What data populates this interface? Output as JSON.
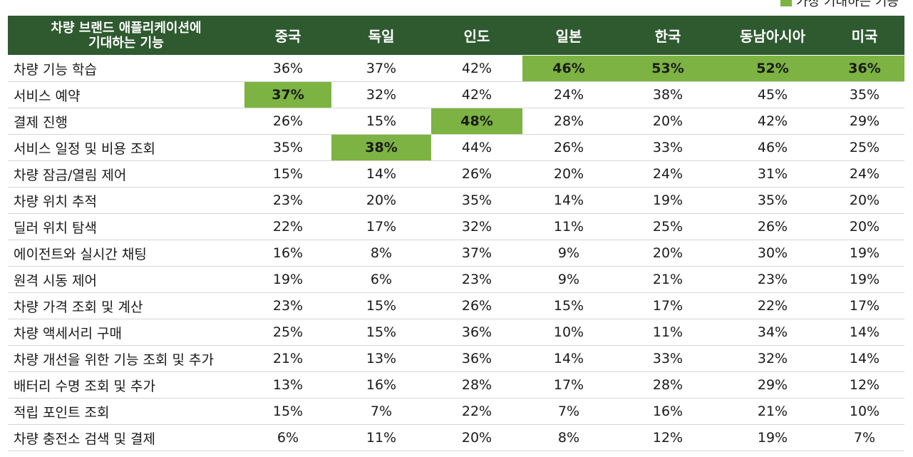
{
  "legend": {
    "label": "가장 기대하는 기능",
    "color": "#7cb342"
  },
  "colors": {
    "header": "#2f5a30",
    "highlight": "#7cb342"
  },
  "chart_data": {
    "type": "table",
    "title": "",
    "header_label": [
      "차량 브랜드 애플리케이션에",
      "기대하는 기능"
    ],
    "columns": [
      "중국",
      "독일",
      "인도",
      "일본",
      "한국",
      "동남아시아",
      "미국"
    ],
    "rows": [
      {
        "label": "차량 기능 학습",
        "values": [
          "36%",
          "37%",
          "42%",
          "46%",
          "53%",
          "52%",
          "36%"
        ],
        "highlight": [
          3,
          4,
          5,
          6
        ]
      },
      {
        "label": "서비스 예약",
        "values": [
          "37%",
          "32%",
          "42%",
          "24%",
          "38%",
          "45%",
          "35%"
        ],
        "highlight": [
          0
        ]
      },
      {
        "label": "결제 진행",
        "values": [
          "26%",
          "15%",
          "48%",
          "28%",
          "20%",
          "42%",
          "29%"
        ],
        "highlight": [
          2
        ]
      },
      {
        "label": "서비스 일정 및 비용 조회",
        "values": [
          "35%",
          "38%",
          "44%",
          "26%",
          "33%",
          "46%",
          "25%"
        ],
        "highlight": [
          1
        ]
      },
      {
        "label": "차량 잠금/열림 제어",
        "values": [
          "15%",
          "14%",
          "26%",
          "20%",
          "24%",
          "31%",
          "24%"
        ],
        "highlight": []
      },
      {
        "label": "차량 위치 추적",
        "values": [
          "23%",
          "20%",
          "35%",
          "14%",
          "19%",
          "35%",
          "20%"
        ],
        "highlight": []
      },
      {
        "label": "딜러 위치 탐색",
        "values": [
          "22%",
          "17%",
          "32%",
          "11%",
          "25%",
          "26%",
          "20%"
        ],
        "highlight": []
      },
      {
        "label": "에이전트와 실시간 채팅",
        "values": [
          "16%",
          "8%",
          "37%",
          "9%",
          "20%",
          "30%",
          "19%"
        ],
        "highlight": []
      },
      {
        "label": "원격 시동 제어",
        "values": [
          "19%",
          "6%",
          "23%",
          "9%",
          "21%",
          "23%",
          "19%"
        ],
        "highlight": []
      },
      {
        "label": "차량 가격 조회 및 계산",
        "values": [
          "23%",
          "15%",
          "26%",
          "15%",
          "17%",
          "22%",
          "17%"
        ],
        "highlight": []
      },
      {
        "label": "차량 액세서리 구매",
        "values": [
          "25%",
          "15%",
          "36%",
          "10%",
          "11%",
          "34%",
          "14%"
        ],
        "highlight": []
      },
      {
        "label": "차량 개선을 위한 기능 조회 및 추가",
        "values": [
          "21%",
          "13%",
          "36%",
          "14%",
          "33%",
          "32%",
          "14%"
        ],
        "highlight": []
      },
      {
        "label": "배터리 수명 조회 및 추가",
        "values": [
          "13%",
          "16%",
          "28%",
          "17%",
          "28%",
          "29%",
          "12%"
        ],
        "highlight": []
      },
      {
        "label": "적립 포인트 조회",
        "values": [
          "15%",
          "7%",
          "22%",
          "7%",
          "16%",
          "21%",
          "10%"
        ],
        "highlight": []
      },
      {
        "label": "차량 충전소 검색 및 결제",
        "values": [
          "6%",
          "11%",
          "20%",
          "8%",
          "12%",
          "19%",
          "7%"
        ],
        "highlight": []
      }
    ]
  }
}
